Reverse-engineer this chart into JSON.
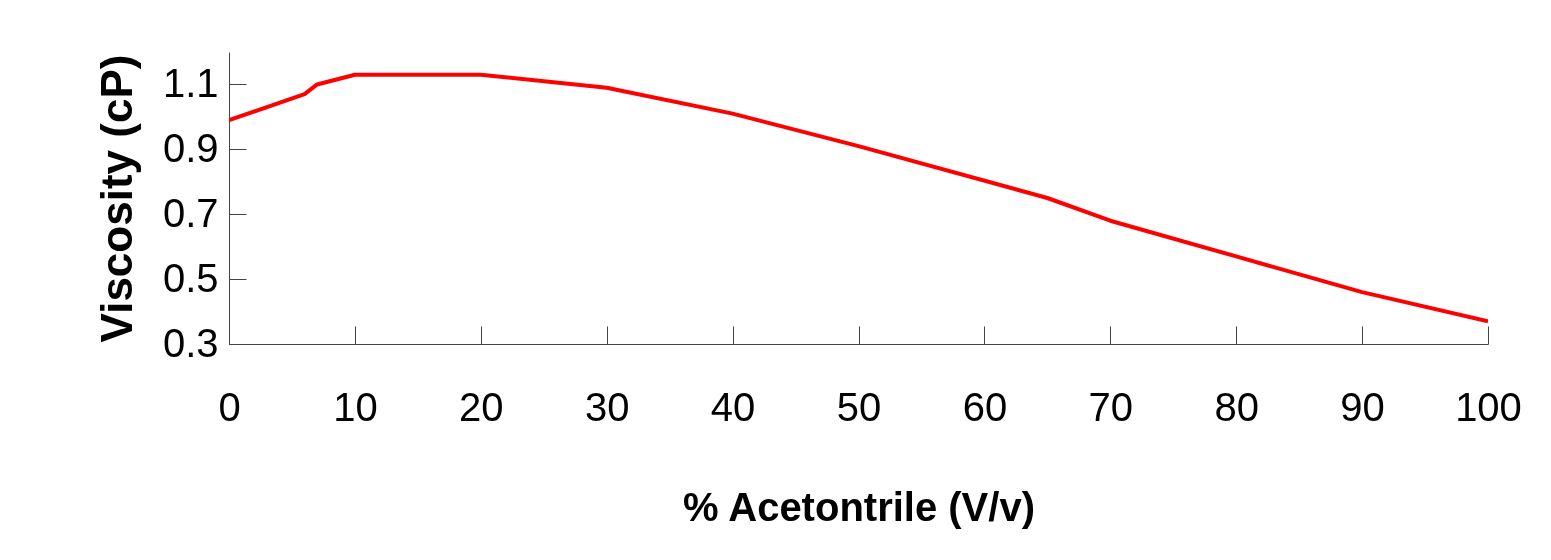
{
  "chart_data": {
    "type": "line",
    "xlabel": "% Acetontrile (V/v)",
    "ylabel": "Viscosity (cP)",
    "x": [
      0,
      6,
      7,
      8,
      10,
      20,
      30,
      40,
      50,
      65,
      70,
      80,
      90,
      100
    ],
    "series": [
      {
        "color": "#ff0000",
        "values": [
          0.99,
          1.07,
          1.1,
          1.11,
          1.13,
          1.13,
          1.09,
          1.01,
          0.91,
          0.75,
          0.68,
          0.57,
          0.46,
          0.37
        ]
      }
    ],
    "xlim": [
      0,
      100
    ],
    "xticks": [
      0,
      10,
      20,
      30,
      40,
      50,
      60,
      70,
      80,
      90,
      100
    ],
    "ylim": [
      0.3,
      1.2
    ],
    "yticks": [
      0.3,
      0.5,
      0.7,
      0.9,
      1.1
    ],
    "grid": false,
    "legend": false,
    "marker": "none",
    "line_style": "solid"
  }
}
